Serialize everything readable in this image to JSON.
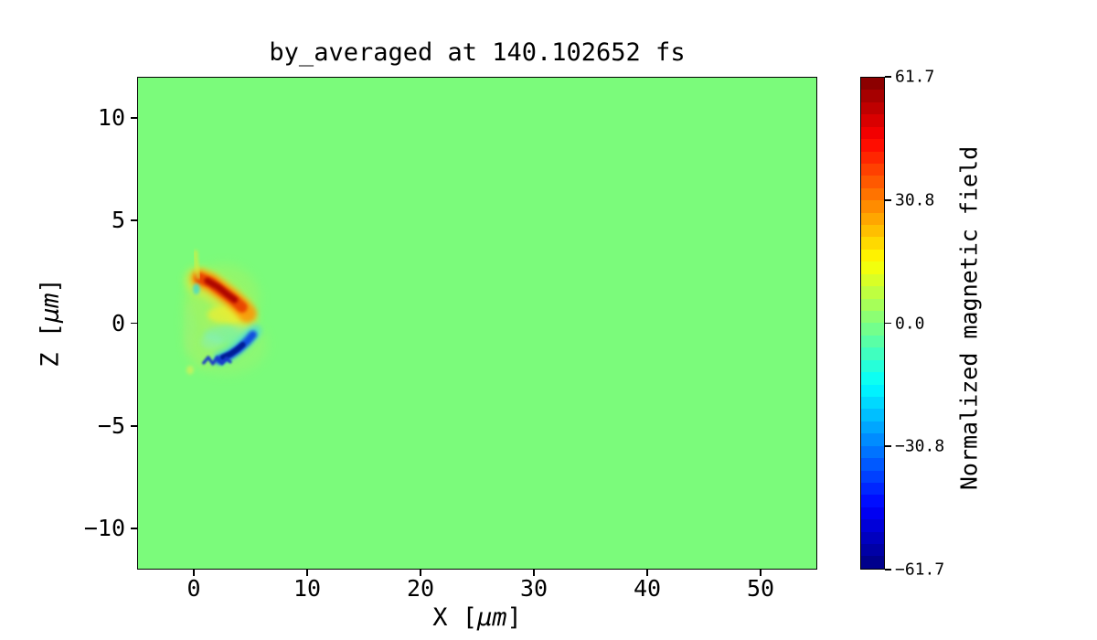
{
  "title": "by_averaged at 140.102652 fs",
  "xlabel": {
    "pre": "X [",
    "unit": "μm",
    "post": "]"
  },
  "ylabel": {
    "pre": "Z [",
    "unit": "μm",
    "post": "]"
  },
  "chart_data": {
    "type": "heatmap",
    "title": "by_averaged at 140.102652 fs",
    "xlabel": "X [μm]",
    "ylabel": "Z [μm]",
    "xlim": [
      -5,
      55
    ],
    "ylim": [
      -12,
      12
    ],
    "x_ticks": {
      "values": [
        0,
        10,
        20,
        30,
        40,
        50
      ],
      "labels": [
        "0",
        "10",
        "20",
        "30",
        "40",
        "50"
      ]
    },
    "y_ticks": {
      "values": [
        10,
        5,
        0,
        -5,
        -10
      ],
      "labels": [
        "10",
        "5",
        "0",
        "−5",
        "−10"
      ]
    },
    "grid": false,
    "background_value": 0.0,
    "colormap": {
      "name": "jet",
      "n_levels": 40,
      "vmin": -61.7,
      "vmax": 61.7,
      "background_color": "#7bfb7b",
      "anchors": [
        "#000080",
        "#0000ff",
        "#00ffff",
        "#80ff80",
        "#ffff00",
        "#ff0000",
        "#800000"
      ]
    },
    "colorbar": {
      "label": "Normalized magnetic field",
      "tick_values": [
        61.7,
        30.8,
        0.0,
        -30.8,
        -61.7
      ],
      "tick_labels": [
        "61.7",
        "30.8",
        "0.0",
        "−30.8",
        "−61.7"
      ],
      "position": "right"
    },
    "features": [
      {
        "name": "positive-field-arc",
        "description": "red/orange arc of positive normalized field",
        "x_um_range": [
          0.3,
          4.7
        ],
        "z_um_range": [
          0.3,
          2.3
        ],
        "approx_peak": 55
      },
      {
        "name": "negative-field-crescent",
        "description": "dark blue crescent of negative normalized field",
        "x_um_range": [
          2.0,
          5.4
        ],
        "z_um_range": [
          -2.0,
          -0.3
        ],
        "approx_peak": -60
      },
      {
        "name": "weak-halo",
        "description": "weak yellow-green turbulent halo around interaction region",
        "x_um_range": [
          -0.6,
          6.5
        ],
        "z_um_range": [
          -2.6,
          3.6
        ],
        "approx_peak": 8
      }
    ],
    "render_strokes": [
      {
        "kind": "ellipse",
        "cx": 2.5,
        "cy": 1.18,
        "rx": 3.23,
        "ry": 1.69,
        "color": "#b4f056",
        "opacity": 0.4,
        "blur": 6
      },
      {
        "kind": "ellipse",
        "cx": 2.82,
        "cy": -1.05,
        "rx": 3.63,
        "ry": 1.47,
        "color": "#a6f26a",
        "opacity": 0.38,
        "blur": 6
      },
      {
        "kind": "ellipse",
        "cx": 0.81,
        "cy": 0.07,
        "rx": 1.77,
        "ry": 2.32,
        "color": "#b4f05a",
        "opacity": 0.3,
        "blur": 6
      },
      {
        "kind": "ellipse",
        "cx": -0.48,
        "cy": -0.29,
        "rx": 0.48,
        "ry": 1.25,
        "color": "#a0f07a",
        "opacity": 0.35,
        "blur": 3
      },
      {
        "kind": "ellipse",
        "cx": -0.4,
        "cy": -2.29,
        "rx": 0.32,
        "ry": 0.22,
        "color": "#e8ef50",
        "opacity": 0.6,
        "blur": 2
      },
      {
        "kind": "path",
        "points": [
          [
            0.32,
            2.11
          ],
          [
            1.61,
            1.76
          ],
          [
            2.9,
            1.22
          ],
          [
            4.03,
            0.6
          ],
          [
            4.35,
            0.24
          ]
        ],
        "width": 30,
        "color": "#f0e832",
        "opacity": 0.55,
        "blur": 4
      },
      {
        "kind": "ellipse",
        "cx": 2.9,
        "cy": 0.42,
        "rx": 1.77,
        "ry": 0.45,
        "color": "#f2ee2e",
        "opacity": 0.7,
        "blur": 3
      },
      {
        "kind": "path",
        "points": [
          [
            0.48,
            2.2
          ],
          [
            1.45,
            1.98
          ],
          [
            2.42,
            1.58
          ],
          [
            3.39,
            1.18
          ],
          [
            4.19,
            0.78
          ],
          [
            4.68,
            0.47
          ]
        ],
        "width": 20,
        "color": "#ff8c00",
        "opacity": 0.8,
        "blur": 3
      },
      {
        "kind": "path",
        "points": [
          [
            0.48,
            2.2
          ],
          [
            1.45,
            1.98
          ],
          [
            2.42,
            1.58
          ],
          [
            3.39,
            1.18
          ],
          [
            4.19,
            0.78
          ]
        ],
        "width": 12,
        "color": "#e83c00",
        "opacity": 0.9,
        "blur": 2
      },
      {
        "kind": "path",
        "points": [
          [
            1.13,
            2.07
          ],
          [
            2.1,
            1.76
          ],
          [
            2.9,
            1.4
          ],
          [
            3.55,
            1.14
          ]
        ],
        "width": 7,
        "color": "#a80000",
        "opacity": 0.9,
        "blur": 1.5
      },
      {
        "kind": "path",
        "points": [
          [
            0.08,
            3.47
          ],
          [
            0.16,
            2.89
          ],
          [
            0.32,
            2.25
          ]
        ],
        "width": 5,
        "color": "#d8ee3c",
        "opacity": 0.7,
        "blur": 2
      },
      {
        "kind": "ellipse",
        "cx": 0.16,
        "cy": 1.67,
        "rx": 0.32,
        "ry": 0.27,
        "color": "#40dcd0",
        "opacity": 0.8,
        "blur": 1.5
      },
      {
        "kind": "ellipse",
        "cx": 3.23,
        "cy": -0.56,
        "rx": 2.42,
        "ry": 0.45,
        "color": "#72eec8",
        "opacity": 0.45,
        "blur": 3
      },
      {
        "kind": "ellipse",
        "cx": 1.53,
        "cy": -0.91,
        "rx": 0.97,
        "ry": 0.36,
        "color": "#84f0c8",
        "opacity": 0.4,
        "blur": 3
      },
      {
        "kind": "path",
        "points": [
          [
            2.26,
            -1.71
          ],
          [
            3.23,
            -1.45
          ],
          [
            4.11,
            -1.09
          ],
          [
            4.84,
            -0.69
          ],
          [
            5.32,
            -0.38
          ]
        ],
        "width": 15,
        "color": "#38d2f0",
        "opacity": 0.55,
        "blur": 3
      },
      {
        "kind": "path",
        "points": [
          [
            2.18,
            -1.8
          ],
          [
            3.06,
            -1.58
          ],
          [
            3.87,
            -1.27
          ],
          [
            4.6,
            -0.91
          ],
          [
            5.16,
            -0.56
          ]
        ],
        "width": 9,
        "color": "#0d47e0",
        "opacity": 0.95,
        "blur": 1.8
      },
      {
        "kind": "path",
        "points": [
          [
            2.5,
            -1.67
          ],
          [
            3.23,
            -1.49
          ],
          [
            3.79,
            -1.27
          ],
          [
            4.27,
            -1.05
          ]
        ],
        "width": 6,
        "color": "#001e96",
        "opacity": 1.0,
        "blur": 1.2
      },
      {
        "kind": "path",
        "points": [
          [
            0.81,
            -1.94
          ],
          [
            1.21,
            -1.67
          ],
          [
            1.61,
            -1.98
          ],
          [
            2.02,
            -1.67
          ],
          [
            2.42,
            -1.98
          ],
          [
            2.82,
            -1.71
          ],
          [
            3.15,
            -1.89
          ]
        ],
        "width": 3.5,
        "color": "#1535c8",
        "opacity": 0.9,
        "blur": 1
      }
    ]
  }
}
